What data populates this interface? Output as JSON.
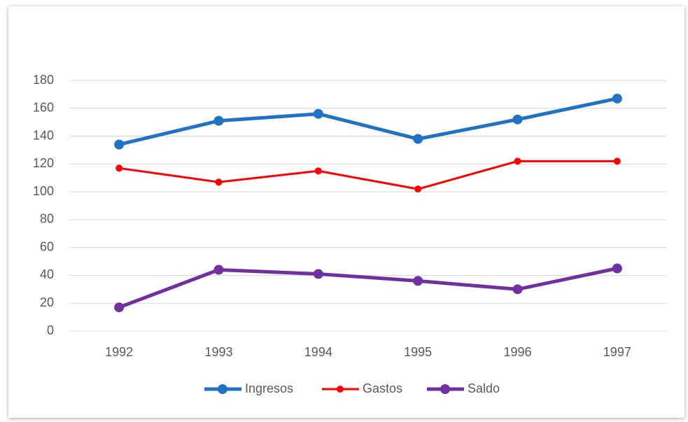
{
  "chart_data": {
    "type": "line",
    "categories": [
      "1992",
      "1993",
      "1994",
      "1995",
      "1996",
      "1997"
    ],
    "series": [
      {
        "name": "Ingresos",
        "color": "#1f72c4",
        "values": [
          134,
          151,
          156,
          138,
          152,
          167
        ]
      },
      {
        "name": "Gastos",
        "color": "#ff0000",
        "values": [
          117,
          107,
          115,
          102,
          122,
          122
        ]
      },
      {
        "name": "Saldo",
        "color": "#7030a0",
        "values": [
          17,
          44,
          41,
          36,
          30,
          45
        ]
      }
    ],
    "ylim": [
      0,
      180
    ],
    "yticks": [
      0,
      20,
      40,
      60,
      80,
      100,
      120,
      140,
      160,
      180
    ],
    "grid": true,
    "legend": "bottom"
  }
}
